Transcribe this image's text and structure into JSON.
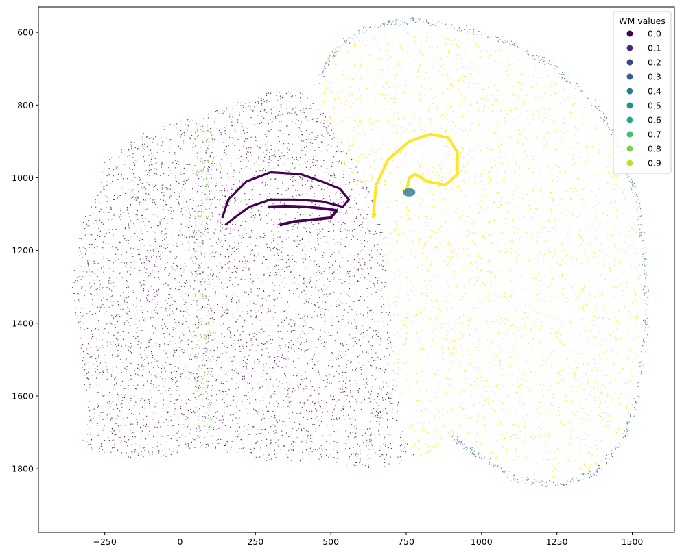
{
  "chart_data": {
    "type": "scatter",
    "title": "",
    "xlabel": "",
    "ylabel": "",
    "xlim": [
      -470,
      1640
    ],
    "ylim": [
      1975,
      530
    ],
    "y_inverted": true,
    "grid": false,
    "x_ticks": [
      -250,
      0,
      250,
      500,
      750,
      1000,
      1250,
      1500
    ],
    "x_tick_labels": [
      "−250",
      "0",
      "250",
      "500",
      "750",
      "1000",
      "1250",
      "1500"
    ],
    "y_ticks": [
      600,
      800,
      1000,
      1200,
      1400,
      1600,
      1800
    ],
    "y_tick_labels": [
      "600",
      "800",
      "1000",
      "1200",
      "1400",
      "1600",
      "1800"
    ],
    "legend": {
      "title": "WM values",
      "placement": "top-right",
      "entries": [
        {
          "label": "0.0",
          "color": "#440154"
        },
        {
          "label": "0.1",
          "color": "#482475"
        },
        {
          "label": "0.2",
          "color": "#414487"
        },
        {
          "label": "0.3",
          "color": "#355f8d"
        },
        {
          "label": "0.4",
          "color": "#2a788e"
        },
        {
          "label": "0.5",
          "color": "#21918c"
        },
        {
          "label": "0.6",
          "color": "#22a884"
        },
        {
          "label": "0.7",
          "color": "#44bf70"
        },
        {
          "label": "0.8",
          "color": "#7ad151"
        },
        {
          "label": "0.9",
          "color": "#bddf26"
        }
      ]
    },
    "colormap": "viridis",
    "series": [
      {
        "value": 0.0,
        "color": "#440154",
        "region": "left hemisphere",
        "outline_xy": [
          [
            -335,
            1750
          ],
          [
            -300,
            1660
          ],
          [
            -330,
            1500
          ],
          [
            -360,
            1300
          ],
          [
            -330,
            1140
          ],
          [
            -260,
            960
          ],
          [
            -140,
            880
          ],
          [
            20,
            840
          ],
          [
            160,
            800
          ],
          [
            300,
            765
          ],
          [
            420,
            760
          ],
          [
            480,
            800
          ],
          [
            520,
            880
          ],
          [
            580,
            960
          ],
          [
            640,
            1060
          ],
          [
            680,
            1160
          ],
          [
            700,
            1320
          ],
          [
            710,
            1500
          ],
          [
            730,
            1650
          ],
          [
            780,
            1770
          ],
          [
            700,
            1795
          ],
          [
            600,
            1800
          ],
          [
            480,
            1780
          ],
          [
            380,
            1780
          ],
          [
            300,
            1780
          ],
          [
            180,
            1760
          ],
          [
            60,
            1740
          ],
          [
            -60,
            1770
          ],
          [
            -150,
            1770
          ],
          [
            -260,
            1760
          ]
        ],
        "point_count": 5200
      },
      {
        "value": 0.9,
        "color": "#fde725",
        "region": "right hemisphere",
        "outline_xy": [
          [
            460,
            700
          ],
          [
            530,
            640
          ],
          [
            640,
            605
          ],
          [
            760,
            598
          ],
          [
            900,
            605
          ],
          [
            1050,
            640
          ],
          [
            1200,
            700
          ],
          [
            1320,
            780
          ],
          [
            1420,
            900
          ],
          [
            1490,
            1050
          ],
          [
            1530,
            1200
          ],
          [
            1535,
            1400
          ],
          [
            1510,
            1580
          ],
          [
            1470,
            1700
          ],
          [
            1400,
            1790
          ],
          [
            1300,
            1835
          ],
          [
            1180,
            1838
          ],
          [
            1050,
            1780
          ],
          [
            920,
            1700
          ],
          [
            860,
            1750
          ],
          [
            780,
            1770
          ],
          [
            740,
            1660
          ],
          [
            715,
            1500
          ],
          [
            700,
            1320
          ],
          [
            670,
            1160
          ],
          [
            600,
            1050
          ],
          [
            520,
            940
          ],
          [
            465,
            830
          ]
        ],
        "point_count": 5600
      },
      {
        "value": 0.3,
        "color": "#31688e",
        "region": "right hemisphere rim",
        "outline_xy": [
          [
            460,
            740
          ],
          [
            520,
            640
          ],
          [
            640,
            580
          ],
          [
            780,
            568
          ],
          [
            950,
            590
          ],
          [
            1100,
            630
          ],
          [
            1250,
            700
          ],
          [
            1380,
            800
          ],
          [
            1470,
            930
          ],
          [
            1520,
            1080
          ],
          [
            1545,
            1250
          ],
          [
            1545,
            1420
          ],
          [
            1520,
            1600
          ],
          [
            1470,
            1720
          ],
          [
            1380,
            1810
          ],
          [
            1250,
            1845
          ],
          [
            1120,
            1830
          ],
          [
            1000,
            1770
          ],
          [
            900,
            1710
          ]
        ],
        "point_count": 700
      },
      {
        "value": 0.8,
        "color": "#7ad151",
        "region": "left vertical stripe",
        "x_range": [
          50,
          110
        ],
        "y_range": [
          850,
          1720
        ],
        "point_count": 260
      }
    ],
    "structures": {
      "left_hippocampus_outer": [
        [
          140,
          1110
        ],
        [
          160,
          1060
        ],
        [
          220,
          1010
        ],
        [
          300,
          985
        ],
        [
          400,
          990
        ],
        [
          470,
          1010
        ],
        [
          530,
          1030
        ],
        [
          560,
          1060
        ],
        [
          540,
          1080
        ],
        [
          470,
          1065
        ],
        [
          380,
          1060
        ],
        [
          300,
          1060
        ],
        [
          230,
          1080
        ],
        [
          180,
          1110
        ],
        [
          150,
          1130
        ]
      ],
      "left_hippocampus_inner": [
        [
          290,
          1080
        ],
        [
          350,
          1078
        ],
        [
          420,
          1080
        ],
        [
          480,
          1085
        ],
        [
          520,
          1090
        ],
        [
          500,
          1110
        ],
        [
          440,
          1115
        ],
        [
          380,
          1120
        ],
        [
          330,
          1130
        ]
      ],
      "right_hippocampus_outer": [
        [
          640,
          1110
        ],
        [
          650,
          1020
        ],
        [
          690,
          950
        ],
        [
          760,
          900
        ],
        [
          830,
          880
        ],
        [
          890,
          890
        ],
        [
          920,
          930
        ],
        [
          920,
          990
        ],
        [
          880,
          1020
        ],
        [
          820,
          1010
        ],
        [
          780,
          990
        ],
        [
          760,
          1000
        ],
        [
          750,
          1040
        ]
      ],
      "right_cluster_center": [
        760,
        1040
      ]
    }
  }
}
